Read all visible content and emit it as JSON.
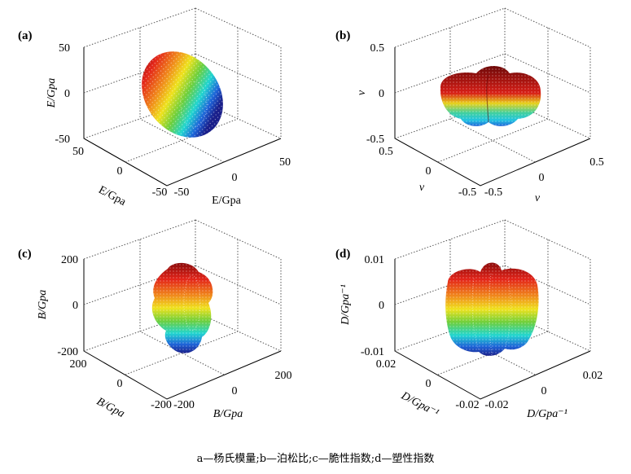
{
  "caption": "a—杨氏模量;b—泊松比;c—脆性指数;d—塑性指数",
  "colors": {
    "top": "#8b0a0a",
    "red": "#e3251a",
    "orange": "#f08a1c",
    "yellow": "#efe21e",
    "green": "#6fcf3c",
    "cyan": "#22d6d0",
    "blue": "#1f64d8",
    "bottom": "#1a1f8a"
  },
  "chart_data": [
    {
      "panel": "(a)",
      "type": "surface3d",
      "xlabel": "E/Gpa",
      "ylabel": "E/Gpa",
      "zlabel": "E/Gpa",
      "x_ticks": [
        "50",
        "0",
        "-50"
      ],
      "y_ticks": [
        "-50",
        "0",
        "50"
      ],
      "z_ticks": [
        "50",
        "0",
        "-50"
      ],
      "xlim": [
        -50,
        50
      ],
      "ylim": [
        -50,
        50
      ],
      "zlim": [
        -50,
        50
      ],
      "grid": true
    },
    {
      "panel": "(b)",
      "type": "surface3d",
      "xlabel": "ν",
      "ylabel": "ν",
      "zlabel": "ν",
      "x_ticks": [
        "0.5",
        "0",
        "-0.5"
      ],
      "y_ticks": [
        "-0.5",
        "0",
        "0.5"
      ],
      "z_ticks": [
        "0.5",
        "0",
        "-0.5"
      ],
      "xlim": [
        -0.5,
        0.5
      ],
      "ylim": [
        -0.5,
        0.5
      ],
      "zlim": [
        -0.5,
        0.5
      ],
      "grid": true
    },
    {
      "panel": "(c)",
      "type": "surface3d",
      "xlabel": "B/Gpa",
      "ylabel": "B/Gpa",
      "zlabel": "B/Gpa",
      "x_ticks": [
        "200",
        "0",
        "-200"
      ],
      "y_ticks": [
        "-200",
        "0",
        "200"
      ],
      "z_ticks": [
        "200",
        "0",
        "-200"
      ],
      "xlim": [
        -200,
        200
      ],
      "ylim": [
        -200,
        200
      ],
      "zlim": [
        -200,
        200
      ],
      "grid": true
    },
    {
      "panel": "(d)",
      "type": "surface3d",
      "xlabel": "D/Gpa⁻¹",
      "ylabel": "D/Gpa⁻¹",
      "zlabel": "D/Gpa⁻¹",
      "x_ticks": [
        "0.02",
        "0",
        "-0.02"
      ],
      "y_ticks": [
        "-0.02",
        "0",
        "0.02"
      ],
      "z_ticks": [
        "0.01",
        "0",
        "-0.01"
      ],
      "xlim": [
        -0.02,
        0.02
      ],
      "ylim": [
        -0.02,
        0.02
      ],
      "zlim": [
        -0.01,
        0.01
      ],
      "grid": true
    }
  ]
}
